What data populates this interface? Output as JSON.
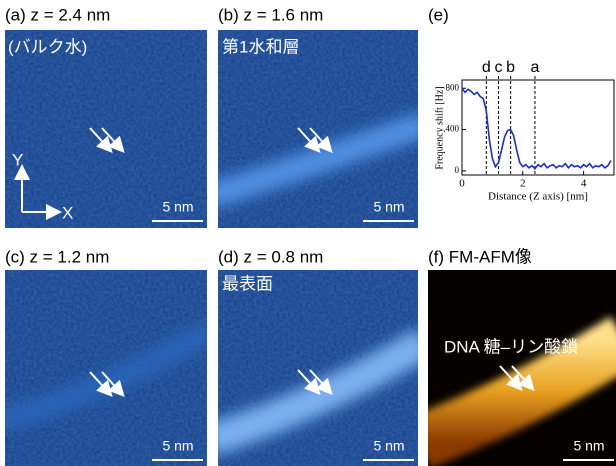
{
  "panels": [
    {
      "label": "(a) z = 2.4 nm",
      "note": "(バルク水)",
      "scale": "5 nm",
      "axis_y": "Y",
      "axis_x": "X"
    },
    {
      "label": "(b) z = 1.6 nm",
      "note": "第1水和層",
      "scale": "5 nm"
    },
    {
      "label": "(c) z = 1.2 nm",
      "scale": "5 nm"
    },
    {
      "label": "(d) z = 0.8 nm",
      "note": "最表面",
      "scale": "5 nm"
    },
    {
      "label": "(f) FM-AFM像",
      "note": "DNA 糖–リン酸鎖",
      "scale": "5 nm"
    }
  ],
  "chart_data": {
    "type": "line",
    "label": "(e)",
    "xlabel": "Distance (Z axis) [nm]",
    "ylabel": "Frequency shift [Hz]",
    "xlim": [
      0,
      5
    ],
    "ylim": [
      -40,
      880
    ],
    "xticks": [
      0,
      2,
      4
    ],
    "yticks": [
      0,
      400,
      800
    ],
    "color": "#1a2fd0",
    "x": [
      0,
      0.1,
      0.2,
      0.3,
      0.4,
      0.5,
      0.6,
      0.7,
      0.8,
      0.9,
      1.0,
      1.1,
      1.2,
      1.3,
      1.4,
      1.5,
      1.6,
      1.7,
      1.8,
      1.9,
      2.0,
      2.1,
      2.2,
      2.3,
      2.4,
      2.5,
      2.6,
      2.7,
      2.8,
      2.9,
      3.0,
      3.1,
      3.2,
      3.3,
      3.4,
      3.5,
      3.6,
      3.7,
      3.8,
      3.9,
      4.0,
      4.1,
      4.2,
      4.3,
      4.4,
      4.5,
      4.6,
      4.7,
      4.8,
      4.9
    ],
    "values": [
      800,
      760,
      790,
      770,
      740,
      760,
      720,
      700,
      580,
      300,
      120,
      40,
      80,
      200,
      330,
      390,
      400,
      340,
      200,
      80,
      40,
      60,
      30,
      50,
      20,
      60,
      40,
      70,
      30,
      50,
      60,
      30,
      50,
      40,
      70,
      30,
      60,
      40,
      50,
      30,
      60,
      40,
      70,
      30,
      50,
      40,
      60,
      30,
      50,
      100
    ],
    "markers": [
      {
        "label": "d",
        "x": 0.8
      },
      {
        "label": "c",
        "x": 1.2
      },
      {
        "label": "b",
        "x": 1.6
      },
      {
        "label": "a",
        "x": 2.4
      }
    ]
  }
}
